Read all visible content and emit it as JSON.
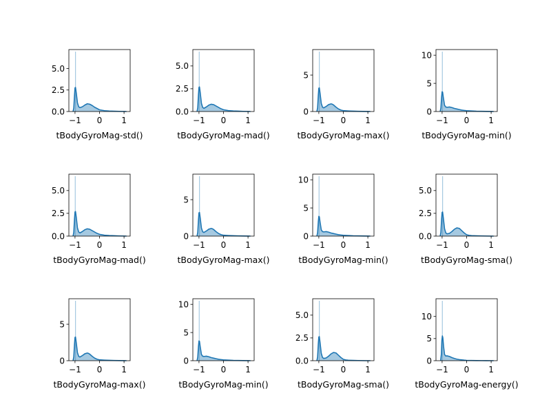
{
  "chart_data": [
    {
      "type": "area",
      "xlabel": "tBodyGyroMag-std()",
      "xlim": [
        -1.25,
        1.25
      ],
      "ylim": [
        0,
        7.2
      ],
      "xticks": [
        -1,
        0,
        1
      ],
      "xtick_labels": [
        "−1",
        "0",
        "1"
      ],
      "yticks": [
        0,
        2.5,
        5
      ],
      "ytick_labels": [
        "0.0",
        "2.5",
        "5.0"
      ],
      "rug_x": -0.98,
      "kde": {
        "x": [
          -1.08,
          -1.05,
          -1.02,
          -1.0,
          -0.98,
          -0.95,
          -0.9,
          -0.85,
          -0.8,
          -0.7,
          -0.6,
          -0.5,
          -0.4,
          -0.3,
          -0.2,
          -0.1,
          0.0,
          0.2,
          0.4,
          0.6,
          0.8,
          1.0,
          1.1
        ],
        "y": [
          0.0,
          0.4,
          1.9,
          2.75,
          2.8,
          2.2,
          1.0,
          0.55,
          0.45,
          0.55,
          0.75,
          0.9,
          0.85,
          0.7,
          0.5,
          0.35,
          0.2,
          0.1,
          0.06,
          0.04,
          0.02,
          0.01,
          0.0
        ]
      }
    },
    {
      "type": "area",
      "xlabel": "tBodyGyroMag-mad()",
      "xlim": [
        -1.25,
        1.25
      ],
      "ylim": [
        0,
        6.8
      ],
      "xticks": [
        -1,
        0,
        1
      ],
      "xtick_labels": [
        "−1",
        "0",
        "1"
      ],
      "yticks": [
        0,
        2.5,
        5
      ],
      "ytick_labels": [
        "0.0",
        "2.5",
        "5.0"
      ],
      "rug_x": -0.99,
      "kde": {
        "x": [
          -1.08,
          -1.05,
          -1.02,
          -1.0,
          -0.98,
          -0.95,
          -0.9,
          -0.85,
          -0.8,
          -0.7,
          -0.6,
          -0.5,
          -0.4,
          -0.3,
          -0.2,
          -0.1,
          0.0,
          0.2,
          0.4,
          0.6,
          0.8,
          1.0,
          1.1
        ],
        "y": [
          0.0,
          0.4,
          1.9,
          2.65,
          2.7,
          2.1,
          0.9,
          0.45,
          0.35,
          0.5,
          0.7,
          0.8,
          0.75,
          0.6,
          0.45,
          0.3,
          0.2,
          0.1,
          0.06,
          0.04,
          0.02,
          0.01,
          0.0
        ]
      }
    },
    {
      "type": "area",
      "xlabel": "tBodyGyroMag-max()",
      "xlim": [
        -1.25,
        1.25
      ],
      "ylim": [
        0,
        8.5
      ],
      "xticks": [
        -1,
        0,
        1
      ],
      "xtick_labels": [
        "−1",
        "0",
        "1"
      ],
      "yticks": [
        0,
        5
      ],
      "ytick_labels": [
        "0",
        "5"
      ],
      "rug_x": -0.98,
      "kde": {
        "x": [
          -1.08,
          -1.05,
          -1.02,
          -1.0,
          -0.98,
          -0.95,
          -0.9,
          -0.85,
          -0.8,
          -0.7,
          -0.6,
          -0.5,
          -0.45,
          -0.4,
          -0.3,
          -0.2,
          -0.1,
          0.0,
          0.2,
          0.4,
          0.6,
          0.8,
          1.0,
          1.1
        ],
        "y": [
          0.0,
          0.5,
          2.3,
          3.2,
          3.25,
          2.5,
          1.1,
          0.6,
          0.5,
          0.7,
          0.95,
          1.05,
          1.0,
          0.9,
          0.6,
          0.35,
          0.2,
          0.12,
          0.08,
          0.05,
          0.03,
          0.02,
          0.01,
          0.0
        ]
      }
    },
    {
      "type": "area",
      "xlabel": "tBodyGyroMag-min()",
      "xlim": [
        -1.25,
        1.25
      ],
      "ylim": [
        0,
        11
      ],
      "xticks": [
        -1,
        0,
        1
      ],
      "xtick_labels": [
        "−1",
        "0",
        "1"
      ],
      "yticks": [
        0,
        5,
        10
      ],
      "ytick_labels": [
        "0",
        "5",
        "10"
      ],
      "rug_x": -0.99,
      "kde": {
        "x": [
          -1.08,
          -1.05,
          -1.02,
          -1.0,
          -0.98,
          -0.95,
          -0.9,
          -0.85,
          -0.8,
          -0.7,
          -0.6,
          -0.5,
          -0.4,
          -0.3,
          -0.2,
          -0.1,
          0.0,
          0.2,
          0.4,
          0.6,
          0.8,
          1.0,
          1.1
        ],
        "y": [
          0.0,
          0.6,
          2.6,
          3.5,
          3.45,
          2.5,
          1.1,
          0.8,
          0.75,
          0.8,
          0.7,
          0.55,
          0.45,
          0.35,
          0.25,
          0.2,
          0.15,
          0.1,
          0.06,
          0.04,
          0.02,
          0.01,
          0.0
        ]
      }
    },
    {
      "type": "area",
      "xlabel": "tBodyGyroMag-mad()",
      "xlim": [
        -1.25,
        1.25
      ],
      "ylim": [
        0,
        6.8
      ],
      "xticks": [
        -1,
        0,
        1
      ],
      "xtick_labels": [
        "−1",
        "0",
        "1"
      ],
      "yticks": [
        0,
        2.5,
        5
      ],
      "ytick_labels": [
        "0.0",
        "2.5",
        "5.0"
      ],
      "rug_x": -0.99,
      "kde": {
        "x": [
          -1.08,
          -1.05,
          -1.02,
          -1.0,
          -0.98,
          -0.95,
          -0.9,
          -0.85,
          -0.8,
          -0.7,
          -0.6,
          -0.5,
          -0.4,
          -0.3,
          -0.2,
          -0.1,
          0.0,
          0.2,
          0.4,
          0.6,
          0.8,
          1.0,
          1.1
        ],
        "y": [
          0.0,
          0.4,
          1.9,
          2.65,
          2.7,
          2.1,
          0.9,
          0.45,
          0.35,
          0.5,
          0.7,
          0.8,
          0.75,
          0.6,
          0.45,
          0.3,
          0.2,
          0.1,
          0.06,
          0.04,
          0.02,
          0.01,
          0.0
        ]
      }
    },
    {
      "type": "area",
      "xlabel": "tBodyGyroMag-max()",
      "xlim": [
        -1.25,
        1.25
      ],
      "ylim": [
        0,
        8.5
      ],
      "xticks": [
        -1,
        0,
        1
      ],
      "xtick_labels": [
        "−1",
        "0",
        "1"
      ],
      "yticks": [
        0,
        5
      ],
      "ytick_labels": [
        "0",
        "5"
      ],
      "rug_x": -0.98,
      "kde": {
        "x": [
          -1.08,
          -1.05,
          -1.02,
          -1.0,
          -0.98,
          -0.95,
          -0.9,
          -0.85,
          -0.8,
          -0.7,
          -0.6,
          -0.5,
          -0.45,
          -0.4,
          -0.3,
          -0.2,
          -0.1,
          0.0,
          0.2,
          0.4,
          0.6,
          0.8,
          1.0,
          1.1
        ],
        "y": [
          0.0,
          0.5,
          2.3,
          3.2,
          3.25,
          2.5,
          1.1,
          0.6,
          0.5,
          0.7,
          0.95,
          1.05,
          1.0,
          0.9,
          0.6,
          0.35,
          0.2,
          0.12,
          0.08,
          0.05,
          0.03,
          0.02,
          0.01,
          0.0
        ]
      }
    },
    {
      "type": "area",
      "xlabel": "tBodyGyroMag-min()",
      "xlim": [
        -1.25,
        1.25
      ],
      "ylim": [
        0,
        11
      ],
      "xticks": [
        -1,
        0,
        1
      ],
      "xtick_labels": [
        "−1",
        "0",
        "1"
      ],
      "yticks": [
        0,
        5,
        10
      ],
      "ytick_labels": [
        "0",
        "5",
        "10"
      ],
      "rug_x": -0.99,
      "kde": {
        "x": [
          -1.08,
          -1.05,
          -1.02,
          -1.0,
          -0.98,
          -0.95,
          -0.9,
          -0.85,
          -0.8,
          -0.7,
          -0.6,
          -0.5,
          -0.4,
          -0.3,
          -0.2,
          -0.1,
          0.0,
          0.2,
          0.4,
          0.6,
          0.8,
          1.0,
          1.1
        ],
        "y": [
          0.0,
          0.6,
          2.6,
          3.5,
          3.45,
          2.5,
          1.1,
          0.8,
          0.75,
          0.8,
          0.7,
          0.55,
          0.45,
          0.35,
          0.25,
          0.2,
          0.15,
          0.1,
          0.06,
          0.04,
          0.02,
          0.01,
          0.0
        ]
      }
    },
    {
      "type": "area",
      "xlabel": "tBodyGyroMag-sma()",
      "xlim": [
        -1.25,
        1.25
      ],
      "ylim": [
        0,
        6.8
      ],
      "xticks": [
        -1,
        0,
        1
      ],
      "xtick_labels": [
        "−1",
        "0",
        "1"
      ],
      "yticks": [
        0,
        2.5,
        5
      ],
      "ytick_labels": [
        "0.0",
        "2.5",
        "5.0"
      ],
      "rug_x": -0.98,
      "kde": {
        "x": [
          -1.08,
          -1.05,
          -1.02,
          -1.0,
          -0.98,
          -0.95,
          -0.9,
          -0.85,
          -0.8,
          -0.7,
          -0.6,
          -0.5,
          -0.4,
          -0.3,
          -0.2,
          -0.1,
          0.0,
          0.1,
          0.2,
          0.4,
          0.6,
          0.8,
          1.0,
          1.1
        ],
        "y": [
          0.0,
          0.4,
          1.9,
          2.6,
          2.65,
          2.0,
          0.8,
          0.35,
          0.25,
          0.3,
          0.5,
          0.75,
          0.9,
          0.85,
          0.6,
          0.35,
          0.15,
          0.08,
          0.05,
          0.03,
          0.02,
          0.01,
          0.0,
          0.0
        ]
      }
    },
    {
      "type": "area",
      "xlabel": "tBodyGyroMag-max()",
      "xlim": [
        -1.25,
        1.25
      ],
      "ylim": [
        0,
        8.5
      ],
      "xticks": [
        -1,
        0,
        1
      ],
      "xtick_labels": [
        "−1",
        "0",
        "1"
      ],
      "yticks": [
        0,
        5
      ],
      "ytick_labels": [
        "0",
        "5"
      ],
      "rug_x": -0.98,
      "kde": {
        "x": [
          -1.08,
          -1.05,
          -1.02,
          -1.0,
          -0.98,
          -0.95,
          -0.9,
          -0.85,
          -0.8,
          -0.7,
          -0.6,
          -0.5,
          -0.45,
          -0.4,
          -0.3,
          -0.2,
          -0.1,
          0.0,
          0.2,
          0.4,
          0.6,
          0.8,
          1.0,
          1.1
        ],
        "y": [
          0.0,
          0.5,
          2.3,
          3.2,
          3.25,
          2.5,
          1.1,
          0.6,
          0.5,
          0.7,
          0.95,
          1.05,
          1.0,
          0.9,
          0.6,
          0.35,
          0.2,
          0.12,
          0.08,
          0.05,
          0.03,
          0.02,
          0.01,
          0.0
        ]
      }
    },
    {
      "type": "area",
      "xlabel": "tBodyGyroMag-min()",
      "xlim": [
        -1.25,
        1.25
      ],
      "ylim": [
        0,
        11
      ],
      "xticks": [
        -1,
        0,
        1
      ],
      "xtick_labels": [
        "−1",
        "0",
        "1"
      ],
      "yticks": [
        0,
        5,
        10
      ],
      "ytick_labels": [
        "0",
        "5",
        "10"
      ],
      "rug_x": -0.99,
      "kde": {
        "x": [
          -1.08,
          -1.05,
          -1.02,
          -1.0,
          -0.98,
          -0.95,
          -0.9,
          -0.85,
          -0.8,
          -0.7,
          -0.6,
          -0.5,
          -0.4,
          -0.3,
          -0.2,
          -0.1,
          0.0,
          0.2,
          0.4,
          0.6,
          0.8,
          1.0,
          1.1
        ],
        "y": [
          0.0,
          0.6,
          2.6,
          3.5,
          3.45,
          2.5,
          1.1,
          0.8,
          0.75,
          0.8,
          0.7,
          0.55,
          0.45,
          0.35,
          0.25,
          0.2,
          0.15,
          0.1,
          0.06,
          0.04,
          0.02,
          0.01,
          0.0
        ]
      }
    },
    {
      "type": "area",
      "xlabel": "tBodyGyroMag-sma()",
      "xlim": [
        -1.25,
        1.25
      ],
      "ylim": [
        0,
        6.8
      ],
      "xticks": [
        -1,
        0,
        1
      ],
      "xtick_labels": [
        "−1",
        "0",
        "1"
      ],
      "yticks": [
        0,
        2.5,
        5
      ],
      "ytick_labels": [
        "0.0",
        "2.5",
        "5.0"
      ],
      "rug_x": -0.98,
      "kde": {
        "x": [
          -1.08,
          -1.05,
          -1.02,
          -1.0,
          -0.98,
          -0.95,
          -0.9,
          -0.85,
          -0.8,
          -0.7,
          -0.6,
          -0.5,
          -0.4,
          -0.3,
          -0.2,
          -0.1,
          0.0,
          0.1,
          0.2,
          0.4,
          0.6,
          0.8,
          1.0,
          1.1
        ],
        "y": [
          0.0,
          0.4,
          1.9,
          2.6,
          2.65,
          2.0,
          0.8,
          0.35,
          0.25,
          0.3,
          0.5,
          0.75,
          0.9,
          0.85,
          0.6,
          0.35,
          0.15,
          0.08,
          0.05,
          0.03,
          0.02,
          0.01,
          0.0,
          0.0
        ]
      }
    },
    {
      "type": "area",
      "xlabel": "tBodyGyroMag-energy()",
      "xlim": [
        -1.25,
        1.25
      ],
      "ylim": [
        0,
        14
      ],
      "xticks": [
        -1,
        0,
        1
      ],
      "xtick_labels": [
        "−1",
        "0",
        "1"
      ],
      "yticks": [
        0,
        5,
        10
      ],
      "ytick_labels": [
        "0",
        "5",
        "10"
      ],
      "rug_x": -0.99,
      "kde": {
        "x": [
          -1.06,
          -1.03,
          -1.01,
          -0.99,
          -0.97,
          -0.94,
          -0.9,
          -0.85,
          -0.8,
          -0.7,
          -0.6,
          -0.5,
          -0.4,
          -0.3,
          -0.2,
          -0.1,
          0.0,
          0.2,
          0.4,
          0.6,
          0.8,
          1.0,
          1.1
        ],
        "y": [
          0.0,
          1.5,
          4.5,
          5.6,
          5.2,
          3.2,
          1.4,
          1.05,
          1.1,
          0.95,
          0.7,
          0.5,
          0.35,
          0.25,
          0.18,
          0.12,
          0.08,
          0.05,
          0.03,
          0.02,
          0.01,
          0.0,
          0.0
        ]
      }
    }
  ],
  "colors": {
    "line": "#1f77b4",
    "fill": "#1f77b4",
    "fill_opacity": 0.4,
    "rug_opacity": 0.4
  }
}
